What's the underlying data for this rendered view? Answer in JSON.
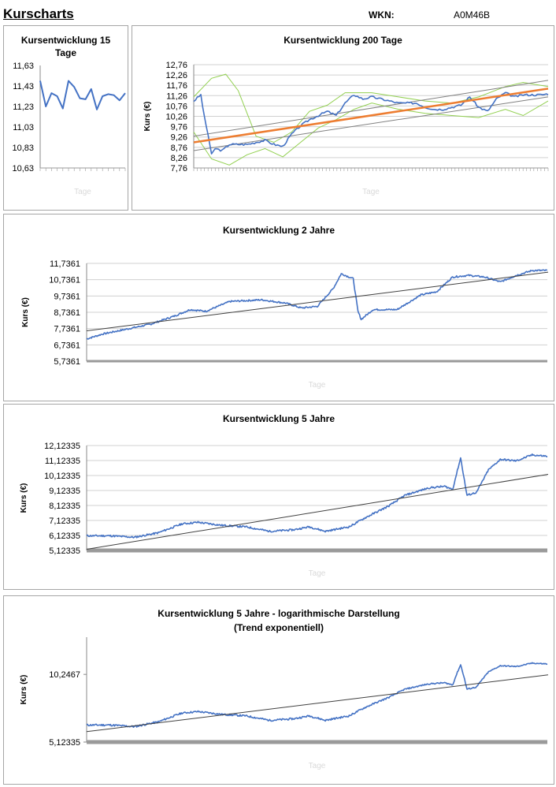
{
  "header": {
    "title": "Kurscharts",
    "wkn_label": "WKN:",
    "wkn_value": "A0M46B"
  },
  "chart_data": [
    {
      "id": "chart15",
      "type": "line",
      "title": "Kursentwicklung 15 Tage",
      "xlabel": "Tage",
      "ylabel": "",
      "ylim": [
        10.63,
        11.63
      ],
      "yticks": [
        "11,63",
        "11,43",
        "11,23",
        "11,03",
        "10,83",
        "10,63"
      ],
      "grid": false,
      "series": [
        {
          "values": [
            11.48,
            11.23,
            11.36,
            11.33,
            11.21,
            11.48,
            11.42,
            11.31,
            11.3,
            11.4,
            11.2,
            11.33,
            11.35,
            11.34,
            11.29,
            11.36
          ],
          "color": "#4472c4"
        }
      ]
    },
    {
      "id": "chart200",
      "type": "line",
      "title": "Kursentwicklung 200 Tage",
      "xlabel": "Tage",
      "ylabel": "Kurs (€)",
      "ylim": [
        7.76,
        12.76
      ],
      "yticks": [
        "12,76",
        "12,26",
        "11,76",
        "11,26",
        "10,76",
        "10,26",
        "9,76",
        "9,26",
        "8,76",
        "8,26",
        "7,76"
      ],
      "grid": true,
      "price_anchors": [
        [
          0,
          11.0
        ],
        [
          4,
          11.3
        ],
        [
          6,
          10.2
        ],
        [
          8,
          9.4
        ],
        [
          10,
          8.4
        ],
        [
          12,
          8.7
        ],
        [
          16,
          8.6
        ],
        [
          20,
          8.9
        ],
        [
          30,
          8.9
        ],
        [
          40,
          9.1
        ],
        [
          45,
          8.9
        ],
        [
          50,
          8.8
        ],
        [
          55,
          9.4
        ],
        [
          60,
          9.8
        ],
        [
          65,
          10.1
        ],
        [
          70,
          10.3
        ],
        [
          75,
          10.5
        ],
        [
          80,
          10.3
        ],
        [
          85,
          10.9
        ],
        [
          90,
          11.3
        ],
        [
          95,
          11.1
        ],
        [
          100,
          11.2
        ],
        [
          105,
          11.1
        ],
        [
          110,
          11.0
        ],
        [
          115,
          10.9
        ],
        [
          120,
          10.9
        ],
        [
          125,
          10.9
        ],
        [
          130,
          10.7
        ],
        [
          135,
          10.6
        ],
        [
          140,
          10.6
        ],
        [
          150,
          10.8
        ],
        [
          155,
          11.2
        ],
        [
          160,
          10.7
        ],
        [
          165,
          10.5
        ],
        [
          170,
          11.1
        ],
        [
          175,
          11.4
        ],
        [
          180,
          11.2
        ],
        [
          185,
          11.3
        ],
        [
          190,
          11.3
        ],
        [
          195,
          11.3
        ],
        [
          199,
          11.35
        ]
      ],
      "trend": {
        "from": [
          0,
          9.0
        ],
        "to": [
          199,
          11.6
        ],
        "color": "#ed7d31"
      },
      "channel_upper": {
        "from": [
          0,
          9.3
        ],
        "to": [
          199,
          12.0
        ]
      },
      "channel_lower": {
        "from": [
          0,
          8.6
        ],
        "to": [
          199,
          11.2
        ]
      },
      "band_upper": [
        [
          0,
          11.2
        ],
        [
          10,
          12.1
        ],
        [
          18,
          12.3
        ],
        [
          25,
          11.5
        ],
        [
          35,
          9.3
        ],
        [
          45,
          9.0
        ],
        [
          55,
          9.5
        ],
        [
          65,
          10.5
        ],
        [
          75,
          10.8
        ],
        [
          85,
          11.4
        ],
        [
          100,
          11.4
        ],
        [
          115,
          11.2
        ],
        [
          130,
          11.0
        ],
        [
          145,
          10.9
        ],
        [
          160,
          11.2
        ],
        [
          175,
          11.7
        ],
        [
          185,
          11.9
        ],
        [
          199,
          11.7
        ]
      ],
      "band_lower": [
        [
          0,
          9.5
        ],
        [
          10,
          8.2
        ],
        [
          20,
          7.9
        ],
        [
          30,
          8.4
        ],
        [
          40,
          8.7
        ],
        [
          50,
          8.3
        ],
        [
          60,
          9.0
        ],
        [
          70,
          9.7
        ],
        [
          80,
          10.1
        ],
        [
          90,
          10.6
        ],
        [
          100,
          10.9
        ],
        [
          115,
          10.6
        ],
        [
          130,
          10.4
        ],
        [
          145,
          10.3
        ],
        [
          160,
          10.2
        ],
        [
          175,
          10.6
        ],
        [
          185,
          10.3
        ],
        [
          199,
          11.0
        ]
      ]
    },
    {
      "id": "chart2y",
      "type": "line",
      "title": "Kursentwicklung 2 Jahre",
      "xlabel": "Tage",
      "ylabel": "Kurs (€)",
      "ylim": [
        5.7361,
        11.7361
      ],
      "yticks": [
        "11,7361",
        "10,7361",
        "9,7361",
        "8,7361",
        "7,7361",
        "6,7361",
        "5,7361"
      ],
      "grid": true,
      "price_anchors": [
        [
          0,
          7.1
        ],
        [
          20,
          7.4
        ],
        [
          50,
          7.7
        ],
        [
          80,
          8.0
        ],
        [
          110,
          8.5
        ],
        [
          130,
          8.9
        ],
        [
          150,
          8.8
        ],
        [
          180,
          9.4
        ],
        [
          220,
          9.5
        ],
        [
          250,
          9.3
        ],
        [
          270,
          9.0
        ],
        [
          290,
          9.1
        ],
        [
          310,
          10.2
        ],
        [
          320,
          11.1
        ],
        [
          335,
          10.8
        ],
        [
          341,
          8.8
        ],
        [
          345,
          8.3
        ],
        [
          360,
          8.9
        ],
        [
          390,
          8.9
        ],
        [
          420,
          9.8
        ],
        [
          440,
          10.0
        ],
        [
          460,
          10.9
        ],
        [
          480,
          11.0
        ],
        [
          500,
          10.9
        ],
        [
          520,
          10.6
        ],
        [
          540,
          11.0
        ],
        [
          560,
          11.3
        ],
        [
          580,
          11.3
        ]
      ],
      "trend": {
        "from": [
          0,
          7.6
        ],
        "to": [
          580,
          11.2
        ],
        "color": "#404040"
      }
    },
    {
      "id": "chart5y",
      "type": "line",
      "title": "Kursentwicklung 5 Jahre",
      "xlabel": "Tage",
      "ylabel": "Kurs (€)",
      "ylim": [
        5.12335,
        12.12335
      ],
      "yticks": [
        "12,12335",
        "11,12335",
        "10,12335",
        "9,12335",
        "8,12335",
        "7,12335",
        "6,12335",
        "5,12335"
      ],
      "grid": true,
      "price_anchors": [
        [
          0,
          6.1
        ],
        [
          30,
          6.1
        ],
        [
          60,
          6.0
        ],
        [
          90,
          6.3
        ],
        [
          120,
          6.9
        ],
        [
          140,
          7.0
        ],
        [
          170,
          6.8
        ],
        [
          200,
          6.7
        ],
        [
          230,
          6.4
        ],
        [
          260,
          6.5
        ],
        [
          280,
          6.7
        ],
        [
          300,
          6.4
        ],
        [
          330,
          6.7
        ],
        [
          350,
          7.3
        ],
        [
          380,
          8.1
        ],
        [
          400,
          8.8
        ],
        [
          430,
          9.3
        ],
        [
          450,
          9.4
        ],
        [
          460,
          9.2
        ],
        [
          470,
          11.3
        ],
        [
          478,
          8.8
        ],
        [
          490,
          9.0
        ],
        [
          505,
          10.5
        ],
        [
          520,
          11.2
        ],
        [
          540,
          11.1
        ],
        [
          560,
          11.5
        ],
        [
          580,
          11.4
        ]
      ],
      "trend": {
        "from": [
          0,
          5.2
        ],
        "to": [
          580,
          10.2
        ],
        "color": "#404040"
      }
    },
    {
      "id": "chart5ylog",
      "type": "line",
      "title": "Kursentwicklung 5 Jahre - logarithmische Darstellung",
      "subtitle": "(Trend exponentiell)",
      "xlabel": "Tage",
      "ylabel": "Kurs (€)",
      "log_scale": true,
      "ylim": [
        5.12335,
        15.0
      ],
      "yticks": [
        "10,2467",
        "5,12335"
      ],
      "grid": false,
      "price_anchors": [
        [
          0,
          6.1
        ],
        [
          30,
          6.1
        ],
        [
          60,
          6.0
        ],
        [
          90,
          6.3
        ],
        [
          120,
          6.9
        ],
        [
          140,
          7.0
        ],
        [
          170,
          6.8
        ],
        [
          200,
          6.7
        ],
        [
          230,
          6.4
        ],
        [
          260,
          6.5
        ],
        [
          280,
          6.7
        ],
        [
          300,
          6.4
        ],
        [
          330,
          6.7
        ],
        [
          350,
          7.3
        ],
        [
          380,
          8.1
        ],
        [
          400,
          8.8
        ],
        [
          430,
          9.3
        ],
        [
          450,
          9.4
        ],
        [
          460,
          9.2
        ],
        [
          470,
          11.3
        ],
        [
          478,
          8.8
        ],
        [
          490,
          9.0
        ],
        [
          505,
          10.5
        ],
        [
          520,
          11.2
        ],
        [
          540,
          11.1
        ],
        [
          560,
          11.5
        ],
        [
          580,
          11.4
        ]
      ],
      "trend": {
        "from": [
          0,
          5.7
        ],
        "to": [
          580,
          10.2
        ],
        "color": "#404040"
      }
    }
  ]
}
